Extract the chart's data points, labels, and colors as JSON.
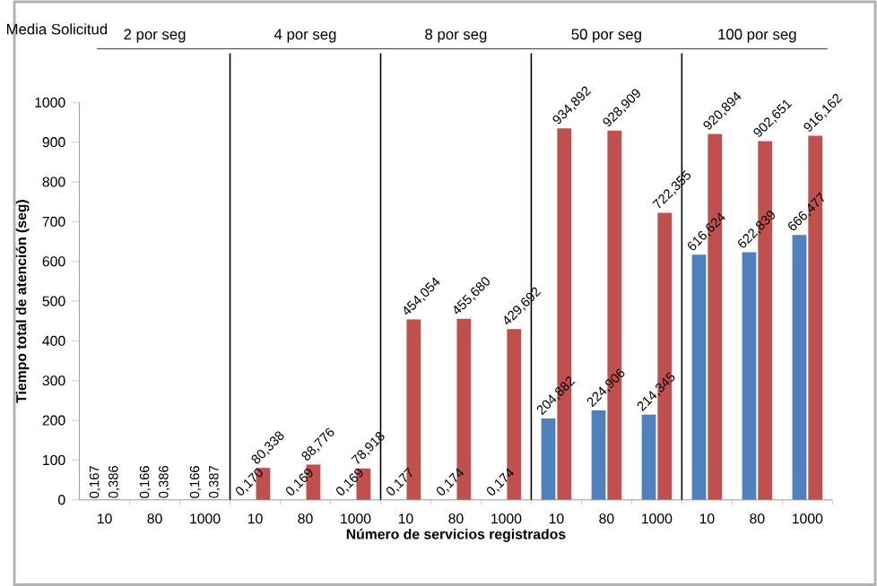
{
  "chart_data": {
    "type": "bar",
    "xlabel": "Número de servicios registrados",
    "ylabel": "Tiempo total de atención (seg)",
    "categories": [
      "10",
      "80",
      "1000",
      "10",
      "80",
      "1000",
      "10",
      "80",
      "1000",
      "10",
      "80",
      "1000",
      "10",
      "80",
      "1000"
    ],
    "series": [
      {
        "color": "#4f81bd",
        "values": [
          0.167,
          0.166,
          0.166,
          0.17,
          0.169,
          0.169,
          0.177,
          0.174,
          0.174,
          204.882,
          224.906,
          214.345,
          616.624,
          622.839,
          666.477
        ],
        "value_labels": [
          "0,167",
          "0,166",
          "0,166",
          "0,170",
          "0,169",
          "0,169",
          "0,177",
          "0,174",
          "0,174",
          "204,882",
          "224,906",
          "214,345",
          "616,624",
          "622,839",
          "666,477"
        ]
      },
      {
        "color": "#c0504d",
        "values": [
          0.386,
          0.386,
          0.387,
          80.338,
          88.776,
          78.918,
          454.054,
          455.68,
          429.692,
          934.892,
          928.909,
          722.355,
          920.894,
          902.651,
          916.162
        ],
        "value_labels": [
          "0,386",
          "0,386",
          "0,387",
          "80,338",
          "88,776",
          "78,918",
          "454,054",
          "455,680",
          "429,692",
          "934,892",
          "928,909",
          "722,355",
          "920,894",
          "902,651",
          "916,162"
        ]
      }
    ],
    "annotations": [
      "Media Solicitud",
      "2 por seg",
      "4 por seg",
      "8 por seg",
      "50 por seg",
      "100 por seg"
    ],
    "ylim": [
      0,
      1000
    ],
    "yticks": [
      0,
      100,
      200,
      300,
      400,
      500,
      600,
      700,
      800,
      900,
      1000
    ],
    "grid": false
  }
}
